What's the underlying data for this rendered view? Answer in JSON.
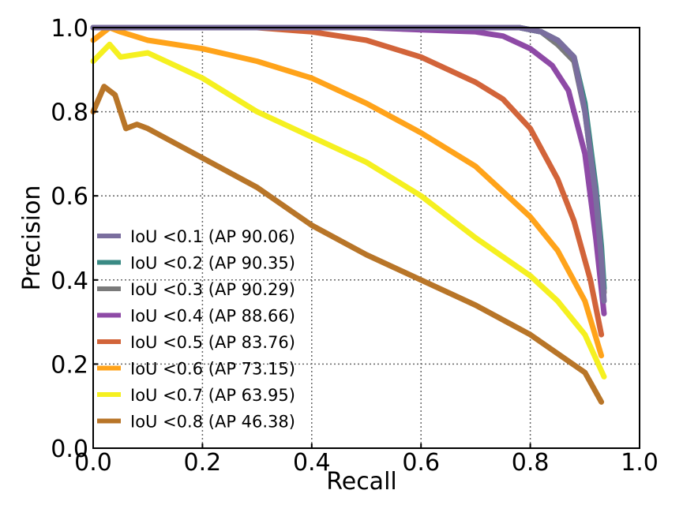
{
  "chart_data": {
    "type": "line",
    "title": "",
    "xlabel": "Recall",
    "ylabel": "Precision",
    "xlim": [
      0.0,
      1.0
    ],
    "ylim": [
      0.0,
      1.0
    ],
    "xticks": [
      "0.0",
      "0.2",
      "0.4",
      "0.6",
      "0.8",
      "1.0"
    ],
    "yticks": [
      "0.0",
      "0.2",
      "0.4",
      "0.6",
      "0.8",
      "1.0"
    ],
    "grid": true,
    "legend_position": "lower-left",
    "series": [
      {
        "name": "IoU <0.1 (AP 90.06)",
        "color": "#7a6e9e",
        "x": [
          0.0,
          0.05,
          0.2,
          0.4,
          0.6,
          0.7,
          0.78,
          0.82,
          0.85,
          0.88,
          0.9,
          0.92,
          0.93,
          0.935
        ],
        "y": [
          1.0,
          1.0,
          1.0,
          1.0,
          1.0,
          1.0,
          1.0,
          0.99,
          0.97,
          0.93,
          0.8,
          0.6,
          0.45,
          0.35
        ]
      },
      {
        "name": "IoU <0.2 (AP 90.35)",
        "color": "#3a8a84",
        "x": [
          0.0,
          0.05,
          0.2,
          0.4,
          0.6,
          0.7,
          0.78,
          0.82,
          0.85,
          0.88,
          0.9,
          0.92,
          0.93,
          0.935
        ],
        "y": [
          1.0,
          1.0,
          1.0,
          1.0,
          1.0,
          1.0,
          1.0,
          0.99,
          0.97,
          0.93,
          0.82,
          0.62,
          0.48,
          0.38
        ]
      },
      {
        "name": "IoU <0.3 (AP 90.29)",
        "color": "#7a7a7a",
        "x": [
          0.0,
          0.05,
          0.2,
          0.4,
          0.6,
          0.7,
          0.78,
          0.82,
          0.85,
          0.88,
          0.9,
          0.92,
          0.93,
          0.935
        ],
        "y": [
          1.0,
          1.0,
          1.0,
          1.0,
          1.0,
          1.0,
          1.0,
          0.99,
          0.96,
          0.92,
          0.8,
          0.6,
          0.46,
          0.37
        ]
      },
      {
        "name": "IoU <0.4 (AP 88.66)",
        "color": "#8e4aa6",
        "x": [
          0.0,
          0.05,
          0.2,
          0.4,
          0.5,
          0.6,
          0.7,
          0.75,
          0.8,
          0.84,
          0.87,
          0.9,
          0.92,
          0.935
        ],
        "y": [
          1.0,
          1.0,
          1.0,
          1.0,
          1.0,
          0.995,
          0.99,
          0.98,
          0.95,
          0.91,
          0.85,
          0.7,
          0.5,
          0.32
        ]
      },
      {
        "name": "IoU <0.5 (AP 83.76)",
        "color": "#d2643a",
        "x": [
          0.0,
          0.05,
          0.2,
          0.3,
          0.4,
          0.5,
          0.6,
          0.7,
          0.75,
          0.8,
          0.85,
          0.88,
          0.91,
          0.93
        ],
        "y": [
          1.0,
          1.0,
          1.0,
          1.0,
          0.99,
          0.97,
          0.93,
          0.87,
          0.83,
          0.76,
          0.64,
          0.54,
          0.4,
          0.27
        ]
      },
      {
        "name": "IoU <0.6 (AP 73.15)",
        "color": "#ffa31a",
        "x": [
          0.0,
          0.03,
          0.05,
          0.1,
          0.2,
          0.3,
          0.4,
          0.5,
          0.6,
          0.7,
          0.8,
          0.85,
          0.9,
          0.93
        ],
        "y": [
          0.97,
          1.0,
          0.99,
          0.97,
          0.95,
          0.92,
          0.88,
          0.82,
          0.75,
          0.67,
          0.55,
          0.47,
          0.35,
          0.22
        ]
      },
      {
        "name": "IoU <0.7 (AP 63.95)",
        "color": "#f5f020",
        "x": [
          0.0,
          0.03,
          0.05,
          0.1,
          0.2,
          0.3,
          0.4,
          0.5,
          0.6,
          0.7,
          0.8,
          0.85,
          0.9,
          0.935
        ],
        "y": [
          0.92,
          0.96,
          0.93,
          0.94,
          0.88,
          0.8,
          0.74,
          0.68,
          0.6,
          0.5,
          0.41,
          0.35,
          0.27,
          0.17
        ]
      },
      {
        "name": "IoU <0.8 (AP 46.38)",
        "color": "#b87528",
        "x": [
          0.0,
          0.02,
          0.04,
          0.06,
          0.08,
          0.1,
          0.2,
          0.3,
          0.4,
          0.5,
          0.6,
          0.7,
          0.8,
          0.9,
          0.93
        ],
        "y": [
          0.8,
          0.86,
          0.84,
          0.76,
          0.77,
          0.76,
          0.69,
          0.62,
          0.53,
          0.46,
          0.4,
          0.34,
          0.27,
          0.18,
          0.11
        ]
      }
    ]
  }
}
